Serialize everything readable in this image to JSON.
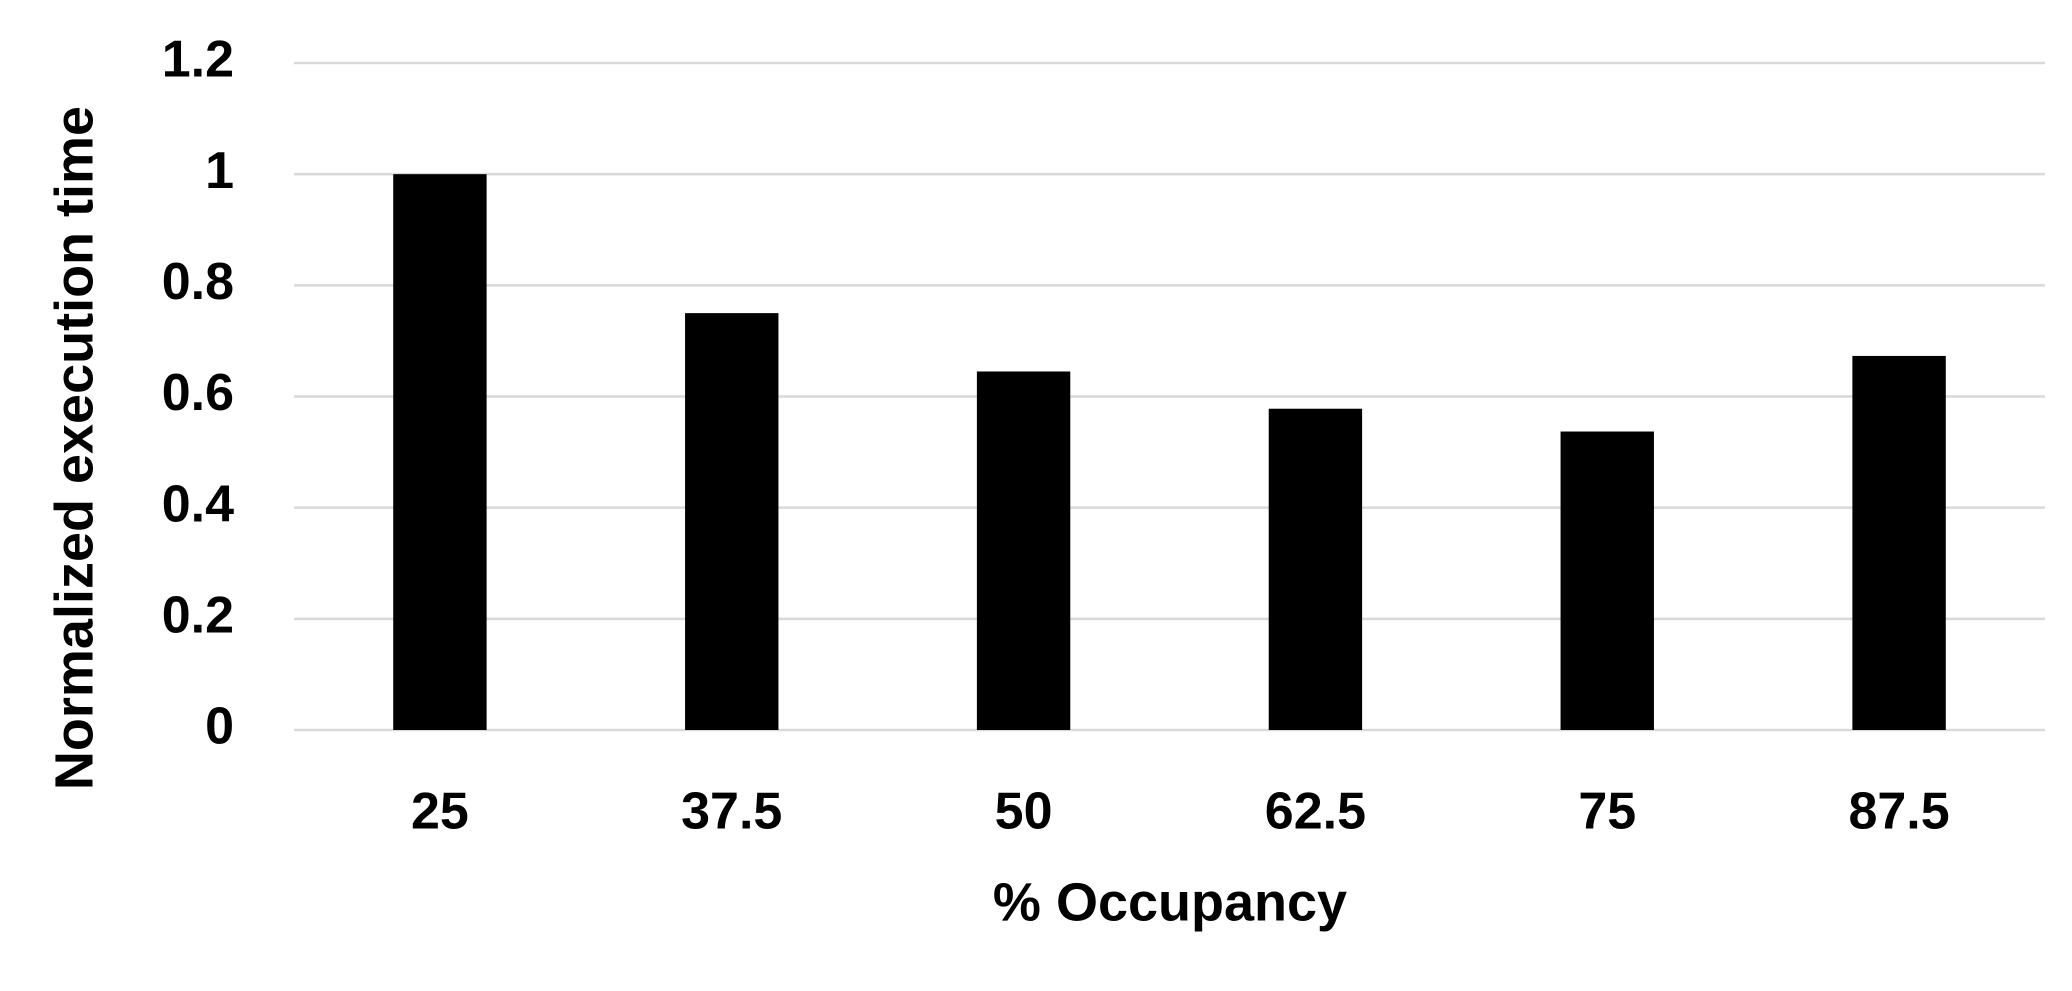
{
  "chart_data": {
    "type": "bar",
    "x_label": "% Occupancy",
    "y_label": "Normalized execution time",
    "categories": [
      "25",
      "37.5",
      "50",
      "62.5",
      "75",
      "87.5"
    ],
    "values": [
      1.0,
      0.75,
      0.645,
      0.578,
      0.537,
      0.673
    ],
    "color": "#000000",
    "ylim": [
      0,
      1.2
    ],
    "yticks": [
      0,
      0.2,
      0.4,
      0.6,
      0.8,
      1,
      1.2
    ],
    "grid": true
  }
}
